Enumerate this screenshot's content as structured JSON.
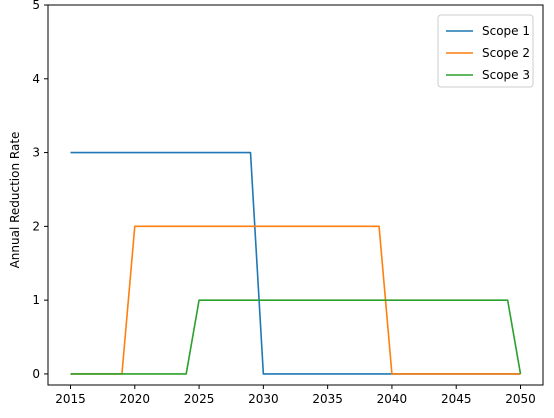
{
  "chart_data": {
    "type": "line",
    "title": "",
    "xlabel": "",
    "ylabel": "Annual Reduction Rate",
    "xlim": [
      2013.25,
      2051.75
    ],
    "ylim": [
      -0.15,
      5
    ],
    "x_ticks": [
      2015,
      2020,
      2025,
      2030,
      2035,
      2040,
      2045,
      2050
    ],
    "y_ticks": [
      0,
      1,
      2,
      3,
      4,
      5
    ],
    "grid": false,
    "legend_position": "top-right",
    "series": [
      {
        "name": "Scope 1",
        "color": "#1f77b4",
        "points": [
          [
            2015,
            3
          ],
          [
            2029,
            3
          ],
          [
            2030,
            0
          ],
          [
            2050,
            0
          ]
        ]
      },
      {
        "name": "Scope 2",
        "color": "#ff7f0e",
        "points": [
          [
            2015,
            0
          ],
          [
            2019,
            0
          ],
          [
            2020,
            2
          ],
          [
            2039,
            2
          ],
          [
            2040,
            0
          ],
          [
            2050,
            0
          ]
        ]
      },
      {
        "name": "Scope 3",
        "color": "#2ca02c",
        "points": [
          [
            2015,
            0
          ],
          [
            2024,
            0
          ],
          [
            2025,
            1
          ],
          [
            2049,
            1
          ],
          [
            2050,
            0
          ]
        ]
      }
    ]
  }
}
